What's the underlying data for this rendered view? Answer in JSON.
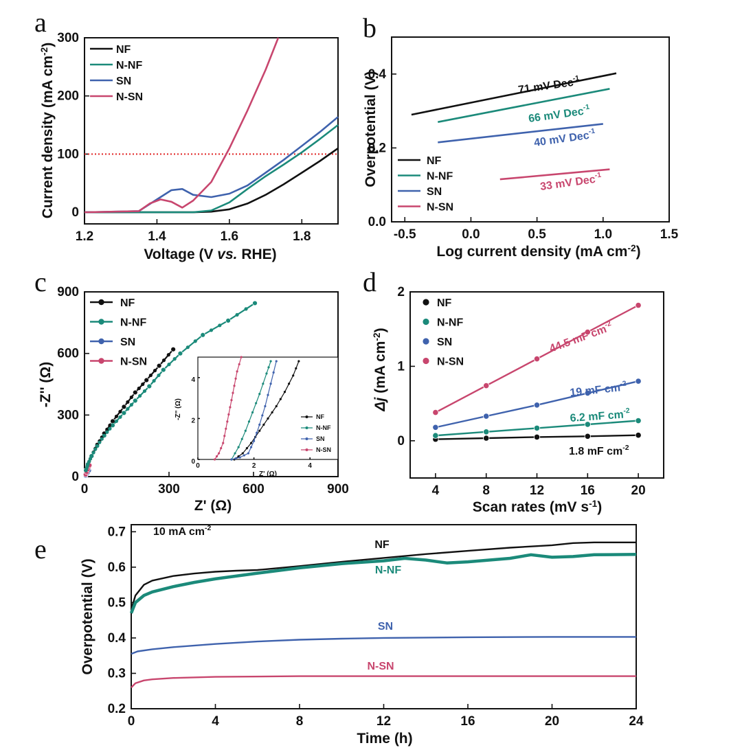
{
  "colors": {
    "NF": "#111111",
    "N-NF": "#1b8a7a",
    "SN": "#3f62ad",
    "N-SN": "#c8466e",
    "ref": "#e02020"
  },
  "chart_data": [
    {
      "panel": "a",
      "type": "line",
      "xlabel": "Voltage (V vs. RHE)",
      "ylabel": "Current density (mA cm-2)",
      "xlim": [
        1.2,
        1.9
      ],
      "ylim": [
        -20,
        300
      ],
      "xticks": [
        "1.2",
        "1.4",
        "1.6",
        "1.8"
      ],
      "yticks": [
        "0",
        "100",
        "200",
        "300"
      ],
      "reference_line": {
        "y": 100,
        "style": "dotted"
      },
      "legend": [
        "NF",
        "N-NF",
        "SN",
        "N-SN"
      ],
      "series": [
        {
          "name": "NF",
          "x": [
            1.2,
            1.5,
            1.55,
            1.6,
            1.65,
            1.7,
            1.75,
            1.8,
            1.85,
            1.9
          ],
          "y": [
            0,
            0,
            1,
            5,
            15,
            30,
            48,
            68,
            88,
            110
          ]
        },
        {
          "name": "N-NF",
          "x": [
            1.2,
            1.5,
            1.55,
            1.6,
            1.65,
            1.7,
            1.75,
            1.8,
            1.85,
            1.9
          ],
          "y": [
            0,
            0,
            3,
            17,
            40,
            62,
            82,
            103,
            126,
            150
          ]
        },
        {
          "name": "SN",
          "x": [
            1.2,
            1.35,
            1.4,
            1.44,
            1.47,
            1.5,
            1.55,
            1.6,
            1.65,
            1.7,
            1.75,
            1.8,
            1.85,
            1.9
          ],
          "y": [
            0,
            2,
            22,
            38,
            40,
            30,
            26,
            32,
            46,
            68,
            90,
            114,
            138,
            164
          ]
        },
        {
          "name": "N-SN",
          "x": [
            1.2,
            1.35,
            1.38,
            1.41,
            1.44,
            1.47,
            1.5,
            1.55,
            1.6,
            1.65,
            1.7,
            1.735
          ],
          "y": [
            0,
            2,
            15,
            22,
            18,
            8,
            20,
            52,
            110,
            175,
            245,
            300
          ]
        }
      ]
    },
    {
      "panel": "b",
      "type": "line",
      "xlabel": "Log current density (mA cm-2)",
      "ylabel": "Overpotential (V)",
      "xlim": [
        -0.6,
        1.5
      ],
      "ylim": [
        0.0,
        0.5
      ],
      "xticks": [
        "-0.5",
        "0.0",
        "0.5",
        "1.0",
        "1.5"
      ],
      "yticks": [
        "0.0",
        "0.2",
        "0.4"
      ],
      "legend": [
        "NF",
        "N-NF",
        "SN",
        "N-SN"
      ],
      "series": [
        {
          "name": "NF",
          "x": [
            -0.45,
            1.1
          ],
          "y": [
            0.29,
            0.402
          ],
          "annotation": "71 mV Dec-1"
        },
        {
          "name": "N-NF",
          "x": [
            -0.25,
            1.05
          ],
          "y": [
            0.27,
            0.36
          ],
          "annotation": "66 mV Dec-1"
        },
        {
          "name": "SN",
          "x": [
            -0.25,
            1.0
          ],
          "y": [
            0.215,
            0.265
          ],
          "annotation": "40 mV Dec-1"
        },
        {
          "name": "N-SN",
          "x": [
            0.22,
            1.05
          ],
          "y": [
            0.115,
            0.142
          ],
          "annotation": "33 mV Dec-1"
        }
      ]
    },
    {
      "panel": "c",
      "type": "scatter",
      "xlabel": "Z' (Ω)",
      "ylabel": "-Z'' (Ω)",
      "xlim": [
        0,
        900
      ],
      "ylim": [
        0,
        900
      ],
      "xticks": [
        "0",
        "300",
        "600",
        "900"
      ],
      "yticks": [
        "0",
        "300",
        "600",
        "900"
      ],
      "legend": [
        "NF",
        "N-NF",
        "SN",
        "N-SN"
      ],
      "series": [
        {
          "name": "NF",
          "x": [
            5,
            12,
            25,
            45,
            70,
            100,
            140,
            180,
            220,
            265,
            315
          ],
          "y": [
            30,
            60,
            100,
            155,
            210,
            270,
            340,
            410,
            470,
            540,
            620
          ]
        },
        {
          "name": "N-NF",
          "x": [
            5,
            12,
            25,
            45,
            70,
            100,
            140,
            180,
            230,
            280,
            340,
            420,
            510,
            605
          ],
          "y": [
            30,
            60,
            100,
            150,
            200,
            250,
            310,
            370,
            440,
            520,
            600,
            690,
            760,
            845
          ]
        },
        {
          "name": "SN",
          "x": [
            4,
            8,
            12,
            16
          ],
          "y": [
            5,
            12,
            20,
            30
          ]
        },
        {
          "name": "N-SN",
          "x": [
            4,
            8,
            12,
            16,
            18
          ],
          "y": [
            10,
            22,
            35,
            48,
            55
          ]
        }
      ],
      "inset": {
        "xlabel": "Z' (Ω)",
        "ylabel": "-Z'' (Ω)",
        "xlim": [
          0,
          5
        ],
        "ylim": [
          0,
          5
        ],
        "xticks": [
          "0",
          "2",
          "4"
        ],
        "yticks": [
          "0",
          "2",
          "4"
        ],
        "legend": [
          "NF",
          "N-NF",
          "SN",
          "N-SN"
        ],
        "series": [
          {
            "name": "NF",
            "x": [
              1.3,
              1.6,
              1.9,
              2.2,
              2.5,
              2.8,
              3.1,
              3.4,
              3.6
            ],
            "y": [
              0,
              0.3,
              0.8,
              1.4,
              2.0,
              2.6,
              3.3,
              4.1,
              4.8
            ]
          },
          {
            "name": "N-NF",
            "x": [
              1.2,
              1.45,
              1.7,
              1.95,
              2.2,
              2.45,
              2.6
            ],
            "y": [
              0,
              0.6,
              1.4,
              2.3,
              3.2,
              4.2,
              4.8
            ]
          },
          {
            "name": "SN",
            "x": [
              1.2,
              1.5,
              1.8,
              2.0,
              2.2,
              2.4,
              2.6,
              2.8
            ],
            "y": [
              0,
              0.1,
              0.3,
              0.9,
              1.7,
              2.6,
              3.7,
              4.8
            ]
          },
          {
            "name": "N-SN",
            "x": [
              0.6,
              0.75,
              0.9,
              1.0,
              1.1,
              1.2,
              1.3,
              1.4,
              1.55
            ],
            "y": [
              0,
              0.3,
              0.8,
              1.5,
              2.2,
              2.9,
              3.6,
              4.3,
              5.0
            ]
          }
        ]
      }
    },
    {
      "panel": "d",
      "type": "scatter",
      "xlabel": "Scan rates (mV s-1)",
      "ylabel": "Δj (mA cm-2)",
      "xlim": [
        2,
        22
      ],
      "ylim": [
        -0.5,
        2.0
      ],
      "xticks": [
        "4",
        "8",
        "12",
        "16",
        "20"
      ],
      "yticks": [
        "0",
        "1",
        "2"
      ],
      "legend": [
        "NF",
        "N-NF",
        "SN",
        "N-SN"
      ],
      "series": [
        {
          "name": "NF",
          "x": [
            4,
            8,
            12,
            16,
            20
          ],
          "y": [
            0.02,
            0.035,
            0.05,
            0.06,
            0.075
          ],
          "annotation": "1.8 mF cm-2"
        },
        {
          "name": "N-NF",
          "x": [
            4,
            8,
            12,
            16,
            20
          ],
          "y": [
            0.07,
            0.12,
            0.17,
            0.22,
            0.27
          ],
          "annotation": "6.2 mF cm-2"
        },
        {
          "name": "SN",
          "x": [
            4,
            8,
            12,
            16,
            20
          ],
          "y": [
            0.18,
            0.33,
            0.48,
            0.64,
            0.8
          ],
          "annotation": "19 mF cm-2"
        },
        {
          "name": "N-SN",
          "x": [
            4,
            8,
            12,
            16,
            20
          ],
          "y": [
            0.38,
            0.74,
            1.1,
            1.46,
            1.82
          ],
          "annotation": "44.5 mF cm-2"
        }
      ]
    },
    {
      "panel": "e",
      "type": "line",
      "title": "10 mA cm-2",
      "xlabel": "Time (h)",
      "ylabel": "Overpotential (V)",
      "xlim": [
        0,
        24
      ],
      "ylim": [
        0.2,
        0.72
      ],
      "xticks": [
        "0",
        "4",
        "8",
        "12",
        "16",
        "20",
        "24"
      ],
      "yticks": [
        "0.2",
        "0.3",
        "0.4",
        "0.5",
        "0.6",
        "0.7"
      ],
      "series": [
        {
          "name": "NF",
          "x": [
            0,
            0.2,
            0.6,
            1,
            2,
            3,
            4,
            5,
            6,
            8,
            10,
            12,
            14,
            16,
            18,
            20,
            21,
            22,
            24
          ],
          "y": [
            0.48,
            0.52,
            0.55,
            0.562,
            0.575,
            0.582,
            0.587,
            0.59,
            0.592,
            0.603,
            0.615,
            0.626,
            0.637,
            0.646,
            0.655,
            0.662,
            0.668,
            0.67,
            0.67
          ]
        },
        {
          "name": "N-NF",
          "x": [
            0,
            0.2,
            0.6,
            1,
            2,
            3,
            4,
            6,
            8,
            10,
            12,
            13,
            14,
            15,
            16,
            18,
            19,
            20,
            21,
            22,
            24
          ],
          "y": [
            0.47,
            0.5,
            0.52,
            0.53,
            0.545,
            0.557,
            0.567,
            0.583,
            0.598,
            0.61,
            0.618,
            0.625,
            0.62,
            0.612,
            0.615,
            0.625,
            0.635,
            0.628,
            0.63,
            0.635,
            0.636
          ]
        },
        {
          "name": "SN",
          "x": [
            0,
            0.3,
            1,
            2,
            4,
            6,
            8,
            10,
            12,
            16,
            20,
            24
          ],
          "y": [
            0.355,
            0.362,
            0.368,
            0.374,
            0.383,
            0.39,
            0.395,
            0.398,
            0.4,
            0.402,
            0.403,
            0.403
          ]
        },
        {
          "name": "N-SN",
          "x": [
            0,
            0.2,
            0.6,
            1,
            2,
            4,
            8,
            12,
            16,
            20,
            24
          ],
          "y": [
            0.26,
            0.272,
            0.28,
            0.283,
            0.287,
            0.29,
            0.292,
            0.292,
            0.292,
            0.292,
            0.292
          ]
        }
      ]
    }
  ]
}
